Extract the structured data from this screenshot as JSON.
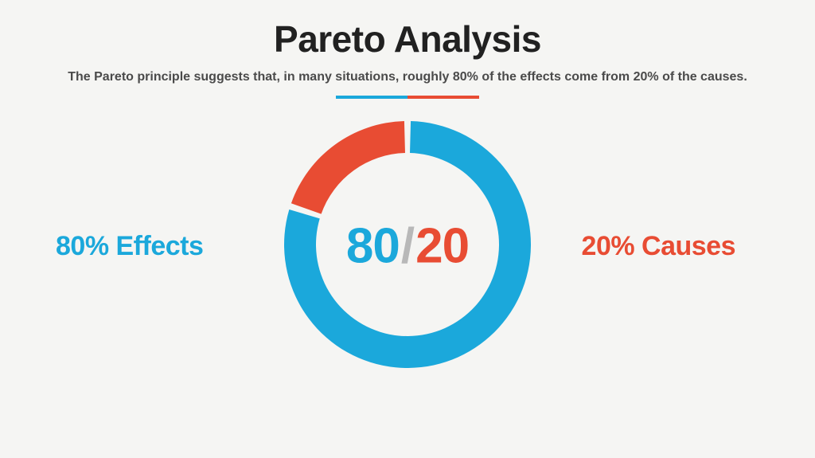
{
  "title": {
    "text": "Pareto Analysis",
    "fontsize": 46,
    "color": "#212121",
    "margin_top": 22
  },
  "subtitle": {
    "text": "The Pareto principle suggests that, in many situations, roughly 80% of the effects come from 20% of the causes.",
    "fontsize": 16,
    "color": "#4a4a4a"
  },
  "divider": {
    "segments": [
      {
        "color": "#1ba8db",
        "width": 90
      },
      {
        "color": "#e84c33",
        "width": 90
      }
    ],
    "height": 4
  },
  "donut": {
    "type": "donut",
    "outer_radius": 155,
    "inner_radius": 115,
    "gap_deg": 3,
    "background": "#f5f5f3",
    "slices": [
      {
        "label": "Effects",
        "value": 80,
        "color": "#1ba8db"
      },
      {
        "label": "Causes",
        "value": 20,
        "color": "#e84c33"
      }
    ],
    "start_angle_deg": -90
  },
  "center": {
    "left": {
      "text": "80",
      "color": "#1ba8db"
    },
    "slash": {
      "text": "/",
      "color": "#b8b8b8"
    },
    "right": {
      "text": "20",
      "color": "#e84c33"
    },
    "fontsize": 62
  },
  "labels": {
    "left": {
      "text": "80% Effects",
      "color": "#1ba8db",
      "fontsize": 34
    },
    "right": {
      "text": "20% Causes",
      "color": "#e84c33",
      "fontsize": 34
    }
  }
}
